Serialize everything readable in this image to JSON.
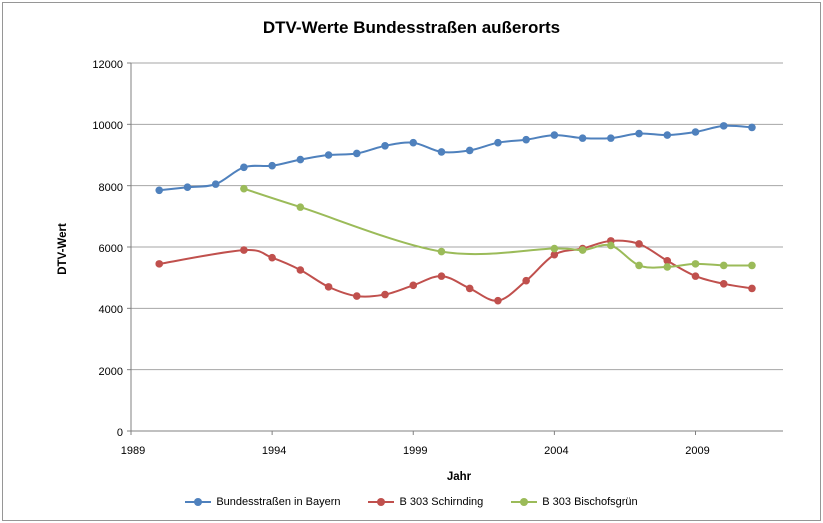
{
  "chart_data": {
    "type": "line",
    "title": "DTV-Werte Bundesstraßen außerorts",
    "xlabel": "Jahr",
    "ylabel": "DTV-Wert",
    "x": [
      1989,
      1990,
      1991,
      1992,
      1993,
      1994,
      1995,
      1996,
      1997,
      1998,
      1999,
      2000,
      2001,
      2002,
      2003,
      2004,
      2005,
      2006,
      2007,
      2008,
      2009,
      2010,
      2011
    ],
    "x_ticks": [
      1989,
      1994,
      1999,
      2004,
      2009
    ],
    "y_ticks": [
      12000,
      10000,
      8000,
      6000,
      4000,
      2000,
      0
    ],
    "ylim": [
      0,
      12000
    ],
    "xlim": [
      1989,
      2012.1
    ],
    "grid": "horizontal",
    "legend_position": "bottom",
    "series": [
      {
        "name": "Bundesstraßen in Bayern",
        "color": "#4F81BD",
        "values": [
          null,
          7850,
          7950,
          8050,
          8600,
          8650,
          8850,
          9000,
          9050,
          9300,
          9400,
          9100,
          9150,
          9400,
          9500,
          9650,
          9550,
          9550,
          9700,
          9650,
          9750,
          9950,
          9900
        ]
      },
      {
        "name": "B 303 Schirnding",
        "color": "#C0504D",
        "values": [
          null,
          5450,
          null,
          null,
          5900,
          5650,
          5250,
          4700,
          4400,
          4450,
          4750,
          5050,
          4650,
          4250,
          4900,
          5750,
          5950,
          6200,
          6100,
          5550,
          5050,
          4800,
          4650
        ]
      },
      {
        "name": "B 303 Bischofsgrün",
        "color": "#9BBB59",
        "values": [
          null,
          null,
          null,
          null,
          7900,
          null,
          7300,
          null,
          null,
          null,
          null,
          5850,
          null,
          null,
          null,
          5950,
          5900,
          6050,
          5400,
          5350,
          5450,
          5400,
          5400
        ]
      }
    ],
    "colors": {
      "gridline": "#A6A6A6",
      "axis": "#808080",
      "text": "#000000"
    }
  }
}
